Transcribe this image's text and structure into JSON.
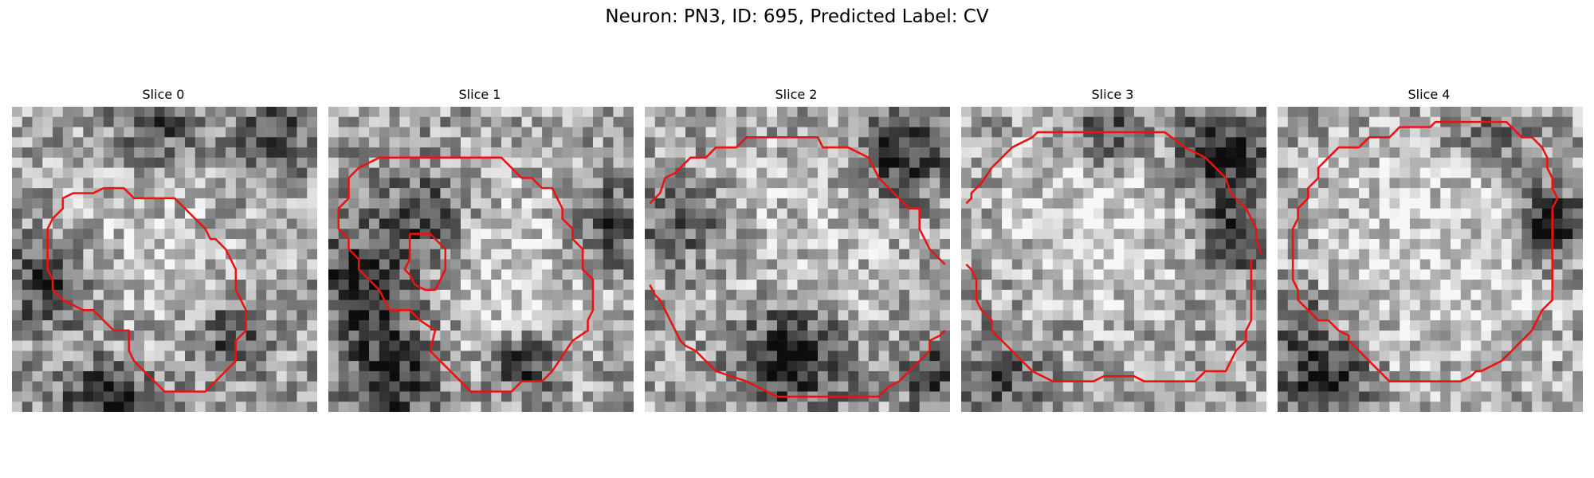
{
  "figure": {
    "title": "Neuron: PN3, ID: 695, Predicted Label: CV"
  },
  "colors": {
    "contour": "#ee1111",
    "background": "#ffffff"
  },
  "panels": [
    {
      "title": "Slice 0"
    },
    {
      "title": "Slice 1"
    },
    {
      "title": "Slice 2"
    },
    {
      "title": "Slice 3"
    },
    {
      "title": "Slice 4"
    }
  ]
}
